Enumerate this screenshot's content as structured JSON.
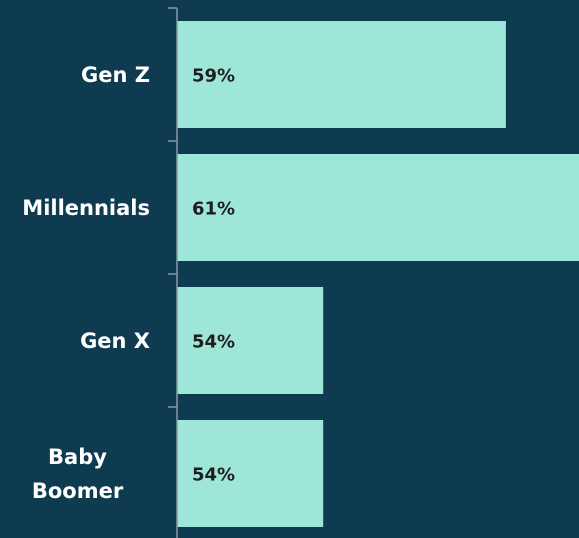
{
  "chart_data": {
    "type": "hbar",
    "categories": [
      "Gen Z",
      "Millennials",
      "Gen X",
      "Baby Boomer"
    ],
    "values": [
      59,
      61,
      54,
      54
    ],
    "value_labels": [
      "59%",
      "61%",
      "54%",
      "54%"
    ],
    "color": "#9ee6d8",
    "xlim": [
      50,
      61
    ]
  }
}
